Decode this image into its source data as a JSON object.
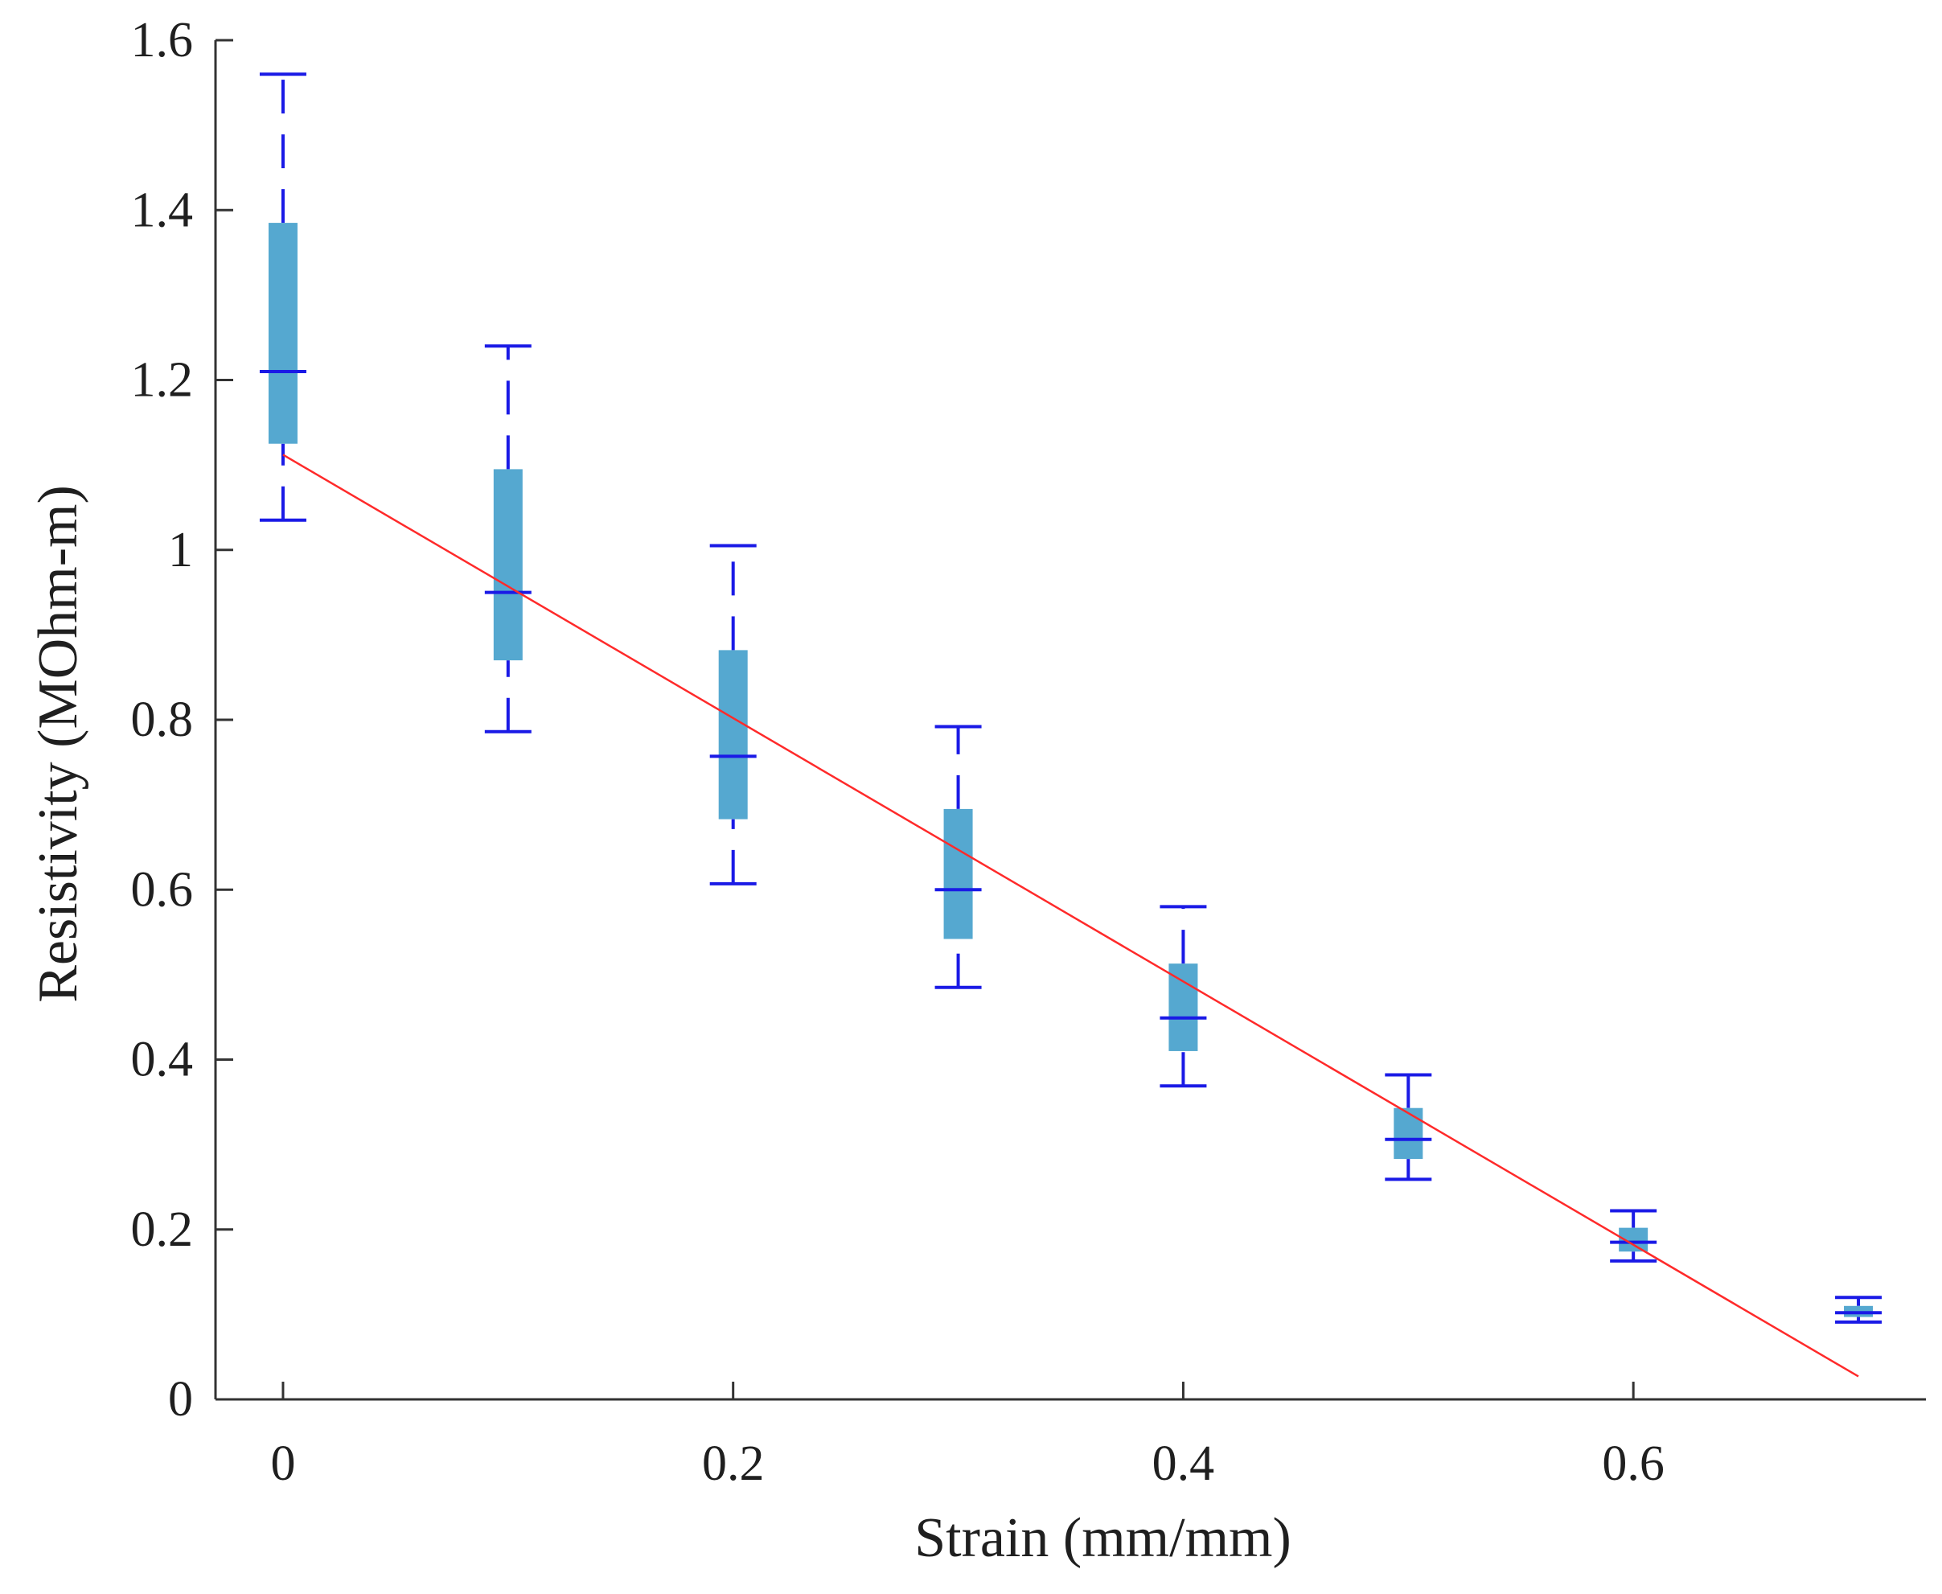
{
  "chart_data": {
    "type": "box",
    "title": "",
    "xlabel": "Strain (mm/mm)",
    "ylabel": "Resistivity (MOhm-m)",
    "xlim": [
      -0.03,
      0.73
    ],
    "ylim": [
      0,
      1.6
    ],
    "xticks": [
      0,
      0.2,
      0.4,
      0.6
    ],
    "xtick_labels": [
      "0",
      "0.2",
      "0.4",
      "0.6"
    ],
    "yticks": [
      0,
      0.2,
      0.4,
      0.6,
      0.8,
      1.0,
      1.2,
      1.4,
      1.6
    ],
    "ytick_labels": [
      "0",
      "0.2",
      "0.4",
      "0.6",
      "0.8",
      "1",
      "1.2",
      "1.4",
      "1.6"
    ],
    "grid": false,
    "boxes": [
      {
        "x": 0.0,
        "min": 1.035,
        "q1": 1.125,
        "median": 1.21,
        "q3": 1.385,
        "max": 1.56
      },
      {
        "x": 0.1,
        "min": 0.786,
        "q1": 0.87,
        "median": 0.95,
        "q3": 1.095,
        "max": 1.24
      },
      {
        "x": 0.2,
        "min": 0.607,
        "q1": 0.683,
        "median": 0.757,
        "q3": 0.882,
        "max": 1.005
      },
      {
        "x": 0.3,
        "min": 0.485,
        "q1": 0.542,
        "median": 0.6,
        "q3": 0.695,
        "max": 0.792
      },
      {
        "x": 0.4,
        "min": 0.369,
        "q1": 0.41,
        "median": 0.449,
        "q3": 0.513,
        "max": 0.58
      },
      {
        "x": 0.5,
        "min": 0.259,
        "q1": 0.283,
        "median": 0.306,
        "q3": 0.343,
        "max": 0.382
      },
      {
        "x": 0.6,
        "min": 0.163,
        "q1": 0.174,
        "median": 0.185,
        "q3": 0.202,
        "max": 0.222
      },
      {
        "x": 0.7,
        "min": 0.091,
        "q1": 0.097,
        "median": 0.102,
        "q3": 0.11,
        "max": 0.12
      }
    ],
    "fit_line": {
      "x": [
        0.0,
        0.7
      ],
      "y": [
        1.112,
        0.027
      ]
    },
    "colors": {
      "box_fill": "#55a8d0",
      "whisker": "#1a1ae6",
      "median": "#1a1ae6",
      "fit": "#ff2a2a",
      "axis": "#333333"
    }
  }
}
